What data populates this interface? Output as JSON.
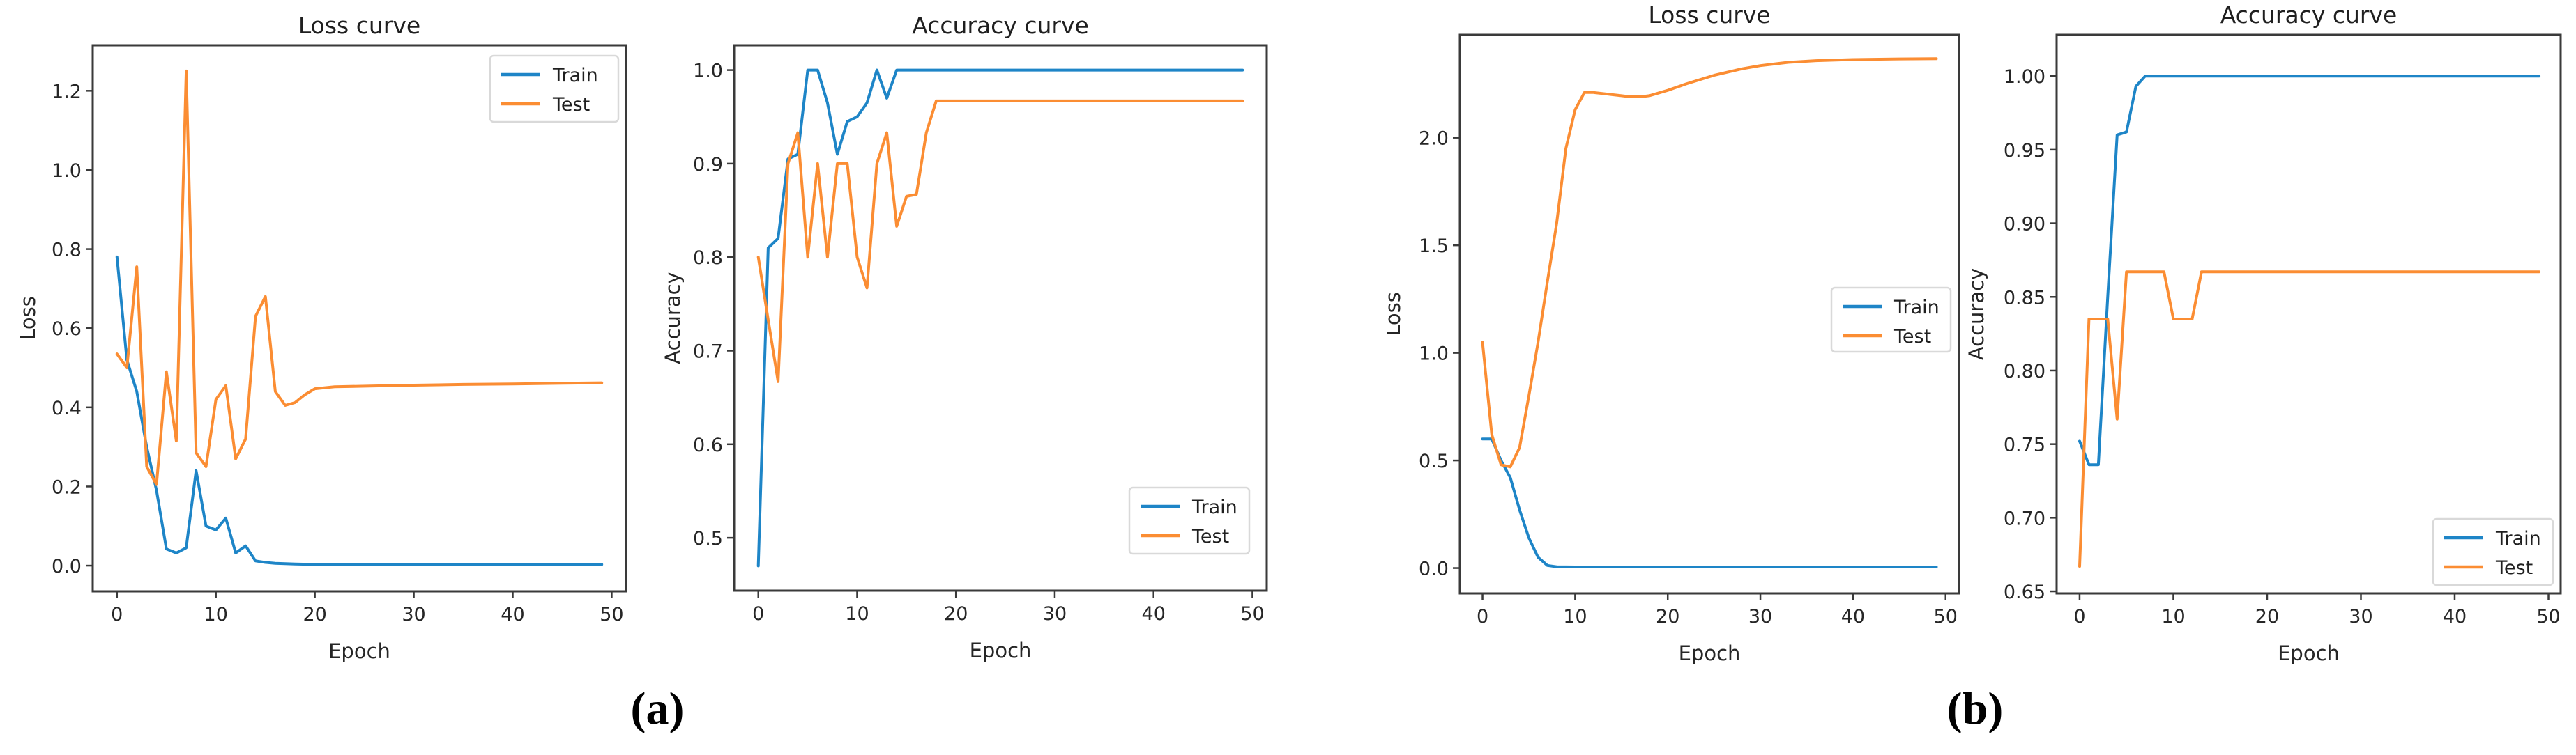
{
  "page": {
    "background": "#ffffff"
  },
  "figure": {
    "caption_a": "(a)",
    "caption_b": "(b)"
  },
  "colors": {
    "train": "#1e85c7",
    "test": "#fb8d33",
    "spine": "#3a3a3a",
    "tick_text": "#262626",
    "legend_border": "#d9d9d9",
    "legend_fill": "#ffffff"
  },
  "chart_data": [
    {
      "id": "loss-a",
      "type": "line",
      "title": "Loss curve",
      "xlabel": "Epoch",
      "ylabel": "Loss",
      "xlim": [
        -2.45,
        51.45
      ],
      "ylim": [
        -0.065,
        1.315
      ],
      "grid": false,
      "xticks": {
        "values": [
          0,
          10,
          20,
          30,
          40,
          50
        ],
        "labels": [
          "0",
          "10",
          "20",
          "30",
          "40",
          "50"
        ]
      },
      "yticks": {
        "values": [
          0.0,
          0.2,
          0.4,
          0.6,
          0.8,
          1.0,
          1.2
        ],
        "labels": [
          "0.0",
          "0.2",
          "0.4",
          "0.6",
          "0.8",
          "1.0",
          "1.2"
        ]
      },
      "legend": {
        "position": "upper right",
        "entries": [
          {
            "label": "Train",
            "color": "#1e85c7"
          },
          {
            "label": "Test",
            "color": "#fb8d33"
          }
        ]
      },
      "series": [
        {
          "name": "Train",
          "color": "#1e85c7",
          "points": [
            [
              0,
              0.78
            ],
            [
              1,
              0.52
            ],
            [
              2,
              0.44
            ],
            [
              3,
              0.3
            ],
            [
              4,
              0.19
            ],
            [
              5,
              0.042
            ],
            [
              6,
              0.032
            ],
            [
              7,
              0.045
            ],
            [
              8,
              0.24
            ],
            [
              9,
              0.1
            ],
            [
              10,
              0.09
            ],
            [
              11,
              0.12
            ],
            [
              12,
              0.032
            ],
            [
              13,
              0.05
            ],
            [
              14,
              0.012
            ],
            [
              15,
              0.008
            ],
            [
              16,
              0.006
            ],
            [
              18,
              0.004
            ],
            [
              20,
              0.003
            ],
            [
              49,
              0.003
            ]
          ]
        },
        {
          "name": "Test",
          "color": "#fb8d33",
          "points": [
            [
              0,
              0.535
            ],
            [
              1,
              0.5
            ],
            [
              2,
              0.755
            ],
            [
              3,
              0.25
            ],
            [
              4,
              0.205
            ],
            [
              5,
              0.49
            ],
            [
              6,
              0.315
            ],
            [
              7,
              1.25
            ],
            [
              8,
              0.285
            ],
            [
              9,
              0.25
            ],
            [
              10,
              0.42
            ],
            [
              11,
              0.455
            ],
            [
              12,
              0.27
            ],
            [
              13,
              0.32
            ],
            [
              14,
              0.63
            ],
            [
              15,
              0.68
            ],
            [
              16,
              0.44
            ],
            [
              17,
              0.405
            ],
            [
              18,
              0.412
            ],
            [
              19,
              0.432
            ],
            [
              20,
              0.447
            ],
            [
              22,
              0.452
            ],
            [
              26,
              0.454
            ],
            [
              30,
              0.456
            ],
            [
              35,
              0.458
            ],
            [
              40,
              0.459
            ],
            [
              45,
              0.461
            ],
            [
              49,
              0.462
            ]
          ]
        }
      ]
    },
    {
      "id": "accuracy-a",
      "type": "line",
      "title": "Accuracy curve",
      "xlabel": "Epoch",
      "ylabel": "Accuracy",
      "xlim": [
        -2.45,
        51.45
      ],
      "ylim": [
        0.4435,
        1.0265
      ],
      "grid": false,
      "xticks": {
        "values": [
          0,
          10,
          20,
          30,
          40,
          50
        ],
        "labels": [
          "0",
          "10",
          "20",
          "30",
          "40",
          "50"
        ]
      },
      "yticks": {
        "values": [
          0.5,
          0.6,
          0.7,
          0.8,
          0.9,
          1.0
        ],
        "labels": [
          "0.5",
          "0.6",
          "0.7",
          "0.8",
          "0.9",
          "1.0"
        ]
      },
      "legend": {
        "position": "lower right",
        "entries": [
          {
            "label": "Train",
            "color": "#1e85c7"
          },
          {
            "label": "Test",
            "color": "#fb8d33"
          }
        ]
      },
      "series": [
        {
          "name": "Train",
          "color": "#1e85c7",
          "points": [
            [
              0,
              0.47
            ],
            [
              1,
              0.81
            ],
            [
              2,
              0.82
            ],
            [
              3,
              0.905
            ],
            [
              4,
              0.91
            ],
            [
              5,
              1.0
            ],
            [
              6,
              1.0
            ],
            [
              7,
              0.965
            ],
            [
              8,
              0.91
            ],
            [
              9,
              0.945
            ],
            [
              10,
              0.95
            ],
            [
              11,
              0.965
            ],
            [
              12,
              1.0
            ],
            [
              13,
              0.97
            ],
            [
              14,
              1.0
            ],
            [
              49,
              1.0
            ]
          ]
        },
        {
          "name": "Test",
          "color": "#fb8d33",
          "points": [
            [
              0,
              0.8
            ],
            [
              1,
              0.733
            ],
            [
              2,
              0.667
            ],
            [
              3,
              0.9
            ],
            [
              4,
              0.933
            ],
            [
              5,
              0.8
            ],
            [
              6,
              0.9
            ],
            [
              7,
              0.8
            ],
            [
              8,
              0.9
            ],
            [
              9,
              0.9
            ],
            [
              10,
              0.8
            ],
            [
              11,
              0.767
            ],
            [
              12,
              0.9
            ],
            [
              13,
              0.933
            ],
            [
              14,
              0.833
            ],
            [
              15,
              0.865
            ],
            [
              16,
              0.867
            ],
            [
              17,
              0.933
            ],
            [
              18,
              0.967
            ],
            [
              49,
              0.967
            ]
          ]
        }
      ]
    },
    {
      "id": "loss-b",
      "type": "line",
      "title": "Loss curve",
      "xlabel": "Epoch",
      "ylabel": "Loss",
      "xlim": [
        -2.45,
        51.45
      ],
      "ylim": [
        -0.118,
        2.478
      ],
      "grid": false,
      "xticks": {
        "values": [
          0,
          10,
          20,
          30,
          40,
          50
        ],
        "labels": [
          "0",
          "10",
          "20",
          "30",
          "40",
          "50"
        ]
      },
      "yticks": {
        "values": [
          0.0,
          0.5,
          1.0,
          1.5,
          2.0
        ],
        "labels": [
          "0.0",
          "0.5",
          "1.0",
          "1.5",
          "2.0"
        ]
      },
      "legend": {
        "position": "center right",
        "entries": [
          {
            "label": "Train",
            "color": "#1e85c7"
          },
          {
            "label": "Test",
            "color": "#fb8d33"
          }
        ]
      },
      "series": [
        {
          "name": "Train",
          "color": "#1e85c7",
          "points": [
            [
              0,
              0.6
            ],
            [
              1,
              0.6
            ],
            [
              2,
              0.5
            ],
            [
              3,
              0.42
            ],
            [
              4,
              0.27
            ],
            [
              5,
              0.14
            ],
            [
              6,
              0.05
            ],
            [
              7,
              0.012
            ],
            [
              8,
              0.006
            ],
            [
              10,
              0.005
            ],
            [
              49,
              0.005
            ]
          ]
        },
        {
          "name": "Test",
          "color": "#fb8d33",
          "points": [
            [
              0,
              1.05
            ],
            [
              1,
              0.62
            ],
            [
              2,
              0.48
            ],
            [
              3,
              0.47
            ],
            [
              4,
              0.56
            ],
            [
              5,
              0.8
            ],
            [
              6,
              1.05
            ],
            [
              7,
              1.33
            ],
            [
              8,
              1.6
            ],
            [
              9,
              1.95
            ],
            [
              10,
              2.13
            ],
            [
              11,
              2.21
            ],
            [
              12,
              2.21
            ],
            [
              13,
              2.205
            ],
            [
              14,
              2.2
            ],
            [
              15,
              2.195
            ],
            [
              16,
              2.19
            ],
            [
              17,
              2.19
            ],
            [
              18,
              2.195
            ],
            [
              20,
              2.22
            ],
            [
              22,
              2.25
            ],
            [
              25,
              2.29
            ],
            [
              28,
              2.32
            ],
            [
              30,
              2.335
            ],
            [
              33,
              2.35
            ],
            [
              36,
              2.358
            ],
            [
              40,
              2.363
            ],
            [
              45,
              2.366
            ],
            [
              49,
              2.367
            ]
          ]
        }
      ]
    },
    {
      "id": "accuracy-b",
      "type": "line",
      "title": "Accuracy curve",
      "xlabel": "Epoch",
      "ylabel": "Accuracy",
      "xlim": [
        -2.45,
        51.3
      ],
      "ylim": [
        0.6486,
        1.028
      ],
      "grid": false,
      "xticks": {
        "values": [
          0,
          10,
          20,
          30,
          40,
          50
        ],
        "labels": [
          "0",
          "10",
          "20",
          "30",
          "40",
          "50"
        ]
      },
      "yticks": {
        "values": [
          0.65,
          0.7,
          0.75,
          0.8,
          0.85,
          0.9,
          0.95,
          1.0
        ],
        "labels": [
          "0.65",
          "0.70",
          "0.75",
          "0.80",
          "0.85",
          "0.90",
          "0.95",
          "1.00"
        ]
      },
      "legend": {
        "position": "lower right",
        "entries": [
          {
            "label": "Train",
            "color": "#1e85c7"
          },
          {
            "label": "Test",
            "color": "#fb8d33"
          }
        ]
      },
      "series": [
        {
          "name": "Train",
          "color": "#1e85c7",
          "points": [
            [
              0,
              0.752
            ],
            [
              1,
              0.736
            ],
            [
              2,
              0.736
            ],
            [
              3,
              0.85
            ],
            [
              4,
              0.96
            ],
            [
              5,
              0.962
            ],
            [
              6,
              0.993
            ],
            [
              7,
              1.0
            ],
            [
              49,
              1.0
            ]
          ]
        },
        {
          "name": "Test",
          "color": "#fb8d33",
          "points": [
            [
              0,
              0.667
            ],
            [
              1,
              0.835
            ],
            [
              2,
              0.835
            ],
            [
              3,
              0.835
            ],
            [
              4,
              0.767
            ],
            [
              5,
              0.867
            ],
            [
              9,
              0.867
            ],
            [
              10,
              0.835
            ],
            [
              12,
              0.835
            ],
            [
              13,
              0.867
            ],
            [
              49,
              0.867
            ]
          ]
        }
      ]
    }
  ]
}
